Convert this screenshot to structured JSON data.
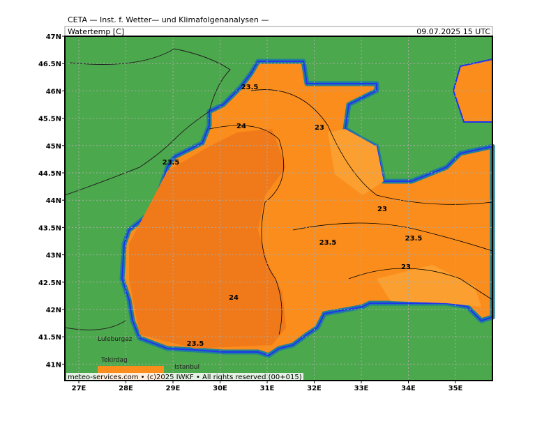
{
  "header": {
    "title": "CETA — Inst. f. Wetter— und Klimafolgenanalysen —",
    "parameter": "Watertemp [C]",
    "valid_time": "09.07.2025 15 UTC"
  },
  "map": {
    "lon_ticks": [
      {
        "value": 27,
        "label": "27E"
      },
      {
        "value": 28,
        "label": "28E"
      },
      {
        "value": 29,
        "label": "29E"
      },
      {
        "value": 30,
        "label": "30E"
      },
      {
        "value": 31,
        "label": "31E"
      },
      {
        "value": 32,
        "label": "32E"
      },
      {
        "value": 33,
        "label": "33E"
      },
      {
        "value": 34,
        "label": "34E"
      },
      {
        "value": 35,
        "label": "35E"
      }
    ],
    "lat_ticks": [
      {
        "value": 47,
        "label": "47N"
      },
      {
        "value": 46.5,
        "label": "46.5N"
      },
      {
        "value": 46,
        "label": "46N"
      },
      {
        "value": 45.5,
        "label": "45.5N"
      },
      {
        "value": 45,
        "label": "45N"
      },
      {
        "value": 44.5,
        "label": "44.5N"
      },
      {
        "value": 44,
        "label": "44N"
      },
      {
        "value": 43.5,
        "label": "43.5N"
      },
      {
        "value": 43,
        "label": "43N"
      },
      {
        "value": 42.5,
        "label": "42.5N"
      },
      {
        "value": 42,
        "label": "42N"
      },
      {
        "value": 41.5,
        "label": "41.5N"
      },
      {
        "value": 41,
        "label": "41N"
      }
    ],
    "contour_labels": [
      23.5,
      24,
      23,
      23.5,
      23,
      23.5,
      23.5,
      23,
      24,
      23.5
    ],
    "places": [
      "Luleburgaz",
      "Tekirdag",
      "Istanbul"
    ]
  },
  "footer": "meteo-services.com • (c)2025 IWKF • All rights reserved (00+015)"
}
